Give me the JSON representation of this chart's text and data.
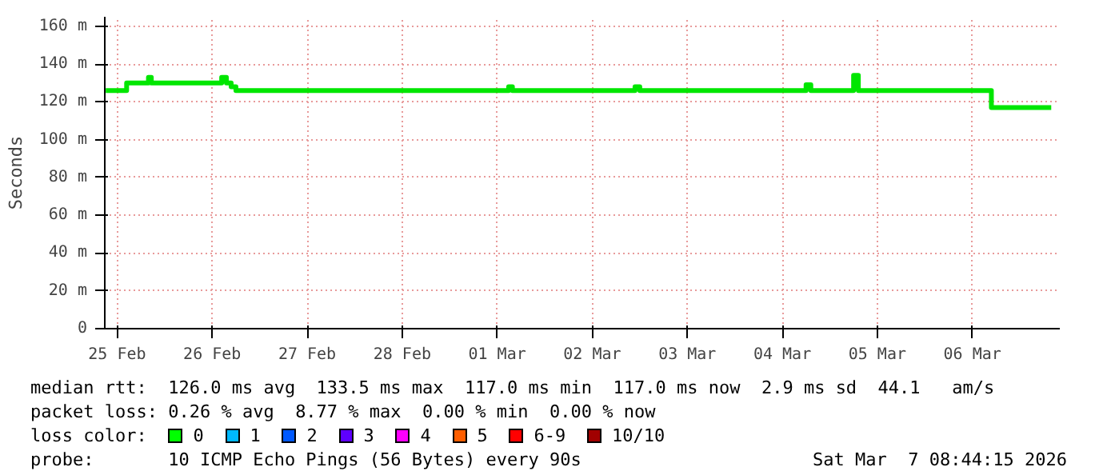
{
  "chart_data": {
    "type": "step",
    "ylabel": "Seconds",
    "x": [
      "2026-02-25T09:07",
      "2026-02-25T12:00",
      "2026-02-25T14:24",
      "2026-02-25T19:55",
      "2026-02-25T20:38",
      "2026-02-25T21:36",
      "2026-02-26T14:24",
      "2026-02-26T15:36",
      "2026-02-26T16:48",
      "2026-02-26T18:00",
      "2026-03-01T13:55",
      "2026-03-01T14:53",
      "2026-03-01T15:50",
      "2026-03-02T21:36",
      "2026-03-02T22:48",
      "2026-03-03T00:00",
      "2026-03-04T16:48",
      "2026-03-04T18:00",
      "2026-03-04T19:12",
      "2026-03-05T04:48",
      "2026-03-05T06:00",
      "2026-03-05T07:12",
      "2026-03-06T14:24",
      "2026-03-06T16:48",
      "2026-03-07T07:55"
    ],
    "series": [
      {
        "color": "#00e600",
        "values": [
          126,
          126,
          130,
          133,
          130,
          130,
          133,
          130,
          128,
          126,
          126,
          128,
          126,
          126,
          128,
          126,
          126,
          129,
          126,
          126,
          134,
          126,
          126,
          117,
          117
        ]
      }
    ],
    "xlim": [
      "2026-02-25T08:53",
      "2026-03-07T10:05"
    ],
    "xticks": [
      {
        "value": "2026-02-25T12:00",
        "label": "25 Feb"
      },
      {
        "value": "2026-02-26T12:00",
        "label": "26 Feb"
      },
      {
        "value": "2026-02-27T12:00",
        "label": "27 Feb"
      },
      {
        "value": "2026-02-28T12:00",
        "label": "28 Feb"
      },
      {
        "value": "2026-03-01T12:00",
        "label": "01 Mar"
      },
      {
        "value": "2026-03-02T12:00",
        "label": "02 Mar"
      },
      {
        "value": "2026-03-03T12:00",
        "label": "03 Mar"
      },
      {
        "value": "2026-03-04T12:00",
        "label": "04 Mar"
      },
      {
        "value": "2026-03-05T12:00",
        "label": "05 Mar"
      },
      {
        "value": "2026-03-06T12:00",
        "label": "06 Mar"
      }
    ],
    "ylim": [
      0,
      165
    ],
    "yticks": [
      0,
      {
        "value": 20,
        "label": "20 m"
      },
      {
        "value": 40,
        "label": "40 m"
      },
      {
        "value": 60,
        "label": "60 m"
      },
      {
        "value": 80,
        "label": "80 m"
      },
      {
        "value": 100,
        "label": "100 m"
      },
      {
        "value": 120,
        "label": "120 m"
      },
      {
        "value": 140,
        "label": "140 m"
      },
      {
        "value": 160,
        "label": "160 m"
      }
    ],
    "grid": true,
    "annotations": [
      "median rtt:  126.0 ms avg  133.5 ms max  117.0 ms min  117.0 ms now  2.9 ms sd  44.1   am/s",
      "packet loss: 0.26 % avg  8.77 % max  0.00 % min  0.00 % now",
      "loss color:  0  1  2  3  4  5  6-9  10/10",
      "probe:       10 ICMP Echo Pings (56 Bytes) every 90s",
      "Sat Mar  7 08:44:15 2026"
    ]
  }
}
